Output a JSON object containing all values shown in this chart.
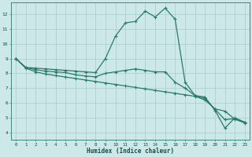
{
  "xlabel": "Humidex (Indice chaleur)",
  "background_color": "#cce8e8",
  "grid_color": "#aacccc",
  "line_color": "#2a7a6a",
  "xlim": [
    -0.5,
    23.5
  ],
  "ylim": [
    3.5,
    12.8
  ],
  "xticks": [
    0,
    1,
    2,
    3,
    4,
    5,
    6,
    7,
    8,
    9,
    10,
    11,
    12,
    13,
    14,
    15,
    16,
    17,
    18,
    19,
    20,
    21,
    22,
    23
  ],
  "yticks": [
    4,
    5,
    6,
    7,
    8,
    9,
    10,
    11,
    12
  ],
  "line1_x": [
    0,
    1,
    2,
    3,
    4,
    5,
    6,
    7,
    8,
    9,
    10,
    11,
    12,
    13,
    14,
    15,
    16,
    17,
    18,
    19,
    20,
    21,
    22,
    23
  ],
  "line1_y": [
    9.0,
    8.4,
    8.35,
    8.3,
    8.25,
    8.2,
    8.15,
    8.1,
    8.05,
    9.0,
    10.5,
    11.4,
    11.5,
    12.2,
    11.8,
    12.4,
    11.65,
    7.4,
    6.5,
    6.4,
    5.5,
    4.3,
    5.0,
    4.7
  ],
  "line2_x": [
    0,
    1,
    2,
    3,
    4,
    5,
    6,
    7,
    8,
    9,
    10,
    11,
    12,
    13,
    14,
    15,
    16,
    17,
    18,
    19,
    20,
    21,
    22,
    23
  ],
  "line2_y": [
    9.0,
    8.35,
    8.1,
    7.95,
    7.85,
    7.75,
    7.65,
    7.55,
    7.45,
    7.35,
    7.25,
    7.15,
    7.05,
    6.95,
    6.85,
    6.75,
    6.65,
    6.55,
    6.45,
    6.2,
    5.6,
    5.45,
    4.9,
    4.65
  ],
  "line3_x": [
    0,
    1,
    2,
    3,
    4,
    5,
    6,
    7,
    8,
    9,
    10,
    11,
    12,
    13,
    14,
    15,
    16,
    17,
    18,
    19,
    20,
    21,
    22,
    23
  ],
  "line3_y": [
    9.0,
    8.38,
    8.25,
    8.15,
    8.1,
    8.05,
    7.9,
    7.82,
    7.76,
    8.0,
    8.1,
    8.2,
    8.3,
    8.2,
    8.1,
    8.1,
    7.4,
    7.0,
    6.5,
    6.3,
    5.58,
    4.87,
    4.95,
    4.68
  ]
}
